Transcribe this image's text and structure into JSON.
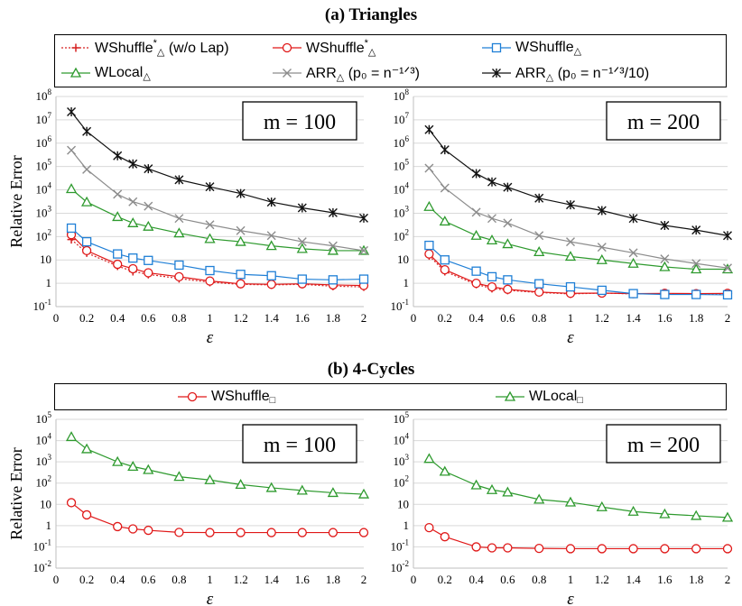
{
  "sections": {
    "a_title": "(a) Triangles",
    "b_title": "(b) 4-Cycles"
  },
  "legend_a": [
    {
      "key": "wshuffle_nolap",
      "base": "WShuffle",
      "sup": "*",
      "sub": "△",
      "tail": " (w/o Lap)",
      "color": "#d62020",
      "marker": "plus",
      "dash": true
    },
    {
      "key": "wshuffle_star",
      "base": "WShuffle",
      "sup": "*",
      "sub": "△",
      "tail": "",
      "color": "#e01818",
      "marker": "circle",
      "dash": false
    },
    {
      "key": "wshuffle",
      "base": "WShuffle",
      "sup": "",
      "sub": "△",
      "tail": "",
      "color": "#1f7fd6",
      "marker": "square",
      "dash": false
    },
    {
      "key": "wlocal",
      "base": "WLocal",
      "sup": "",
      "sub": "△",
      "tail": "",
      "color": "#2e9a2e",
      "marker": "triangle",
      "dash": false
    },
    {
      "key": "arr1",
      "base": "ARR",
      "sup": "",
      "sub": "△",
      "tail": " (p₀ = n⁻¹ᐟ³)",
      "color": "#8c8c8c",
      "marker": "x",
      "dash": false
    },
    {
      "key": "arr2",
      "base": "ARR",
      "sup": "",
      "sub": "△",
      "tail": " (p₀ = n⁻¹ᐟ³/10)",
      "color": "#111111",
      "marker": "star",
      "dash": false
    }
  ],
  "legend_b": [
    {
      "key": "wshuffle_sq",
      "base": "WShuffle",
      "sup": "",
      "sub": "□",
      "tail": "",
      "color": "#e01818",
      "marker": "circle",
      "dash": false
    },
    {
      "key": "wlocal_sq",
      "base": "WLocal",
      "sup": "",
      "sub": "□",
      "tail": "",
      "color": "#2e9a2e",
      "marker": "triangle",
      "dash": false
    }
  ],
  "chart_data": [
    {
      "type": "line",
      "panel": "a-left",
      "annotation": "m = 100",
      "xlabel": "ε",
      "ylabel": "Relative Error",
      "yscale": "log",
      "ylim": [
        0.1,
        100000000
      ],
      "xticks": [
        "0",
        "0.2",
        "0.4",
        "0.6",
        "0.8",
        "1",
        "1.2",
        "1.4",
        "1.6",
        "1.8",
        "2"
      ],
      "yticks": [
        "10-1",
        "1",
        "10",
        "102",
        "103",
        "104",
        "105",
        "106",
        "107",
        "108"
      ],
      "x": [
        0.1,
        0.2,
        0.4,
        0.5,
        0.6,
        0.8,
        1.0,
        1.2,
        1.4,
        1.6,
        1.8,
        2.0
      ],
      "series": [
        {
          "name": "WShuffle*△ (w/o Lap)",
          "key": "wshuffle_nolap",
          "values": [
            75,
            20,
            5.5,
            3.2,
            2.4,
            1.6,
            1.1,
            0.9,
            0.85,
            0.9,
            0.75,
            0.7
          ]
        },
        {
          "name": "WShuffle*△",
          "key": "wshuffle_star",
          "values": [
            120,
            25,
            6.5,
            4.2,
            2.8,
            1.9,
            1.25,
            0.95,
            0.9,
            0.95,
            0.85,
            0.8
          ]
        },
        {
          "name": "WShuffle△",
          "key": "wshuffle",
          "values": [
            230,
            60,
            18,
            12,
            9.5,
            6,
            3.5,
            2.4,
            2.1,
            1.5,
            1.4,
            1.5
          ]
        },
        {
          "name": "WLocal△",
          "key": "wlocal",
          "values": [
            11000,
            3000,
            700,
            380,
            270,
            140,
            80,
            60,
            40,
            30,
            25,
            25
          ]
        },
        {
          "name": "ARR△ (p0 = n^-1/3)",
          "key": "arr1",
          "values": [
            500000,
            75000,
            6500,
            3100,
            2000,
            600,
            320,
            180,
            110,
            60,
            40,
            25
          ]
        },
        {
          "name": "ARR△ (p0 = n^-1/3/10)",
          "key": "arr2",
          "values": [
            22000000,
            3200000,
            290000,
            130000,
            80000,
            27000,
            13500,
            7000,
            3000,
            1700,
            1050,
            620
          ]
        }
      ]
    },
    {
      "type": "line",
      "panel": "a-right",
      "annotation": "m = 200",
      "xlabel": "ε",
      "ylabel": "",
      "yscale": "log",
      "ylim": [
        0.1,
        100000000
      ],
      "xticks": [
        "0",
        "0.2",
        "0.4",
        "0.6",
        "0.8",
        "1",
        "1.2",
        "1.4",
        "1.6",
        "1.8",
        "2"
      ],
      "yticks": [
        "10-1",
        "1",
        "10",
        "102",
        "103",
        "104",
        "105",
        "106",
        "107",
        "108"
      ],
      "x": [
        0.1,
        0.2,
        0.4,
        0.5,
        0.6,
        0.8,
        1.0,
        1.2,
        1.4,
        1.6,
        1.8,
        2.0
      ],
      "series": [
        {
          "name": "WShuffle*△ (w/o Lap)",
          "key": "wshuffle_nolap",
          "values": [
            15,
            3.2,
            0.9,
            0.6,
            0.5,
            0.4,
            0.35,
            0.38,
            0.35,
            0.35,
            0.35,
            0.35
          ]
        },
        {
          "name": "WShuffle*△",
          "key": "wshuffle_star",
          "values": [
            18,
            3.8,
            1.0,
            0.7,
            0.55,
            0.42,
            0.37,
            0.38,
            0.36,
            0.37,
            0.36,
            0.37
          ]
        },
        {
          "name": "WShuffle△",
          "key": "wshuffle",
          "values": [
            42,
            10,
            3.3,
            1.9,
            1.4,
            0.95,
            0.7,
            0.5,
            0.36,
            0.33,
            0.33,
            0.32
          ]
        },
        {
          "name": "WLocal△",
          "key": "wlocal",
          "values": [
            1900,
            450,
            110,
            70,
            48,
            22,
            14,
            10,
            7,
            5,
            4,
            4
          ]
        },
        {
          "name": "ARR△ (p0 = n^-1/3)",
          "key": "arr1",
          "values": [
            85000,
            12000,
            1100,
            600,
            380,
            110,
            60,
            35,
            20,
            11,
            7,
            4.5
          ]
        },
        {
          "name": "ARR△ (p0 = n^-1/3/10)",
          "key": "arr2",
          "values": [
            3800000,
            520000,
            50000,
            22000,
            13000,
            4400,
            2300,
            1300,
            600,
            300,
            190,
            110
          ]
        }
      ]
    },
    {
      "type": "line",
      "panel": "b-left",
      "annotation": "m = 100",
      "xlabel": "ε",
      "ylabel": "Relative Error",
      "yscale": "log",
      "ylim": [
        0.01,
        100000
      ],
      "xticks": [
        "0",
        "0.2",
        "0.4",
        "0.6",
        "0.8",
        "1",
        "1.2",
        "1.4",
        "1.6",
        "1.8",
        "2"
      ],
      "yticks": [
        "10-2",
        "10-1",
        "1",
        "10",
        "102",
        "103",
        "104",
        "105"
      ],
      "x": [
        0.1,
        0.2,
        0.4,
        0.5,
        0.6,
        0.8,
        1.0,
        1.2,
        1.4,
        1.6,
        1.8,
        2.0
      ],
      "series": [
        {
          "name": "WShuffle□",
          "key": "wshuffle_sq",
          "values": [
            12,
            3.2,
            0.9,
            0.7,
            0.6,
            0.48,
            0.47,
            0.47,
            0.47,
            0.47,
            0.47,
            0.47
          ]
        },
        {
          "name": "WLocal□",
          "key": "wlocal_sq",
          "values": [
            15000,
            4000,
            1000,
            600,
            420,
            200,
            140,
            85,
            60,
            45,
            35,
            30
          ]
        }
      ]
    },
    {
      "type": "line",
      "panel": "b-right",
      "annotation": "m = 200",
      "xlabel": "ε",
      "ylabel": "",
      "yscale": "log",
      "ylim": [
        0.01,
        100000
      ],
      "xticks": [
        "0",
        "0.2",
        "0.4",
        "0.6",
        "0.8",
        "1",
        "1.2",
        "1.4",
        "1.6",
        "1.8",
        "2"
      ],
      "yticks": [
        "10-2",
        "10-1",
        "1",
        "10",
        "102",
        "103",
        "104",
        "105"
      ],
      "x": [
        0.1,
        0.2,
        0.4,
        0.5,
        0.6,
        0.8,
        1.0,
        1.2,
        1.4,
        1.6,
        1.8,
        2.0
      ],
      "series": [
        {
          "name": "WShuffle□",
          "key": "wshuffle_sq",
          "values": [
            0.8,
            0.3,
            0.1,
            0.09,
            0.09,
            0.085,
            0.082,
            0.082,
            0.082,
            0.082,
            0.082,
            0.082
          ]
        },
        {
          "name": "WLocal□",
          "key": "wlocal_sq",
          "values": [
            1400,
            350,
            80,
            48,
            37,
            17,
            12.5,
            7.5,
            4.6,
            3.5,
            2.9,
            2.4
          ]
        }
      ]
    }
  ]
}
